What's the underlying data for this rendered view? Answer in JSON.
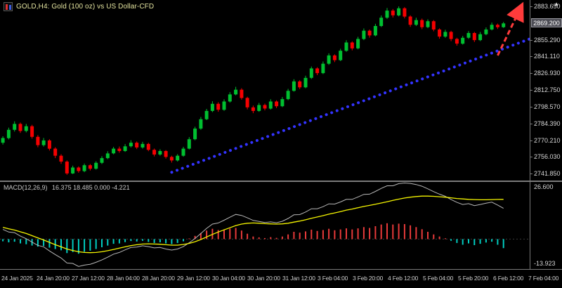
{
  "header": {
    "title": "GOLD,H4: Gold (100 oz) vs US Dollar-CFD",
    "shift_marker": "▲"
  },
  "colors": {
    "background": "#000000",
    "candle_up": "#00bf30",
    "candle_down": "#f50000",
    "trend_line": "#3333ff",
    "arrow": "#ff3b3b",
    "signal_line": "#f5f500",
    "macd_line": "#b8b8b8",
    "hist_up": "#e83a3a",
    "hist_down": "#00ccc0",
    "bid_box_bg": "#4d4d55",
    "axis_text": "#d9d9d9",
    "separator": "#7a7a7a"
  },
  "chart_data": {
    "type": "candlestick",
    "symbol": "GOLD",
    "timeframe": "H4",
    "main": {
      "price_max": 2889,
      "price_min": 2736,
      "slots": 91,
      "bid_price": "2869.200",
      "price_axis": [
        "2883.650",
        "2855.290",
        "2841.110",
        "2826.930",
        "2812.750",
        "2798.570",
        "2784.390",
        "2770.210",
        "2756.030",
        "2741.850"
      ],
      "candles": [
        [
          2768,
          2773.5,
          2766.5,
          2772
        ],
        [
          2772,
          2780.8,
          2770.9,
          2779
        ],
        [
          2779,
          2786.2,
          2777.5,
          2784
        ],
        [
          2784,
          2785.1,
          2776.3,
          2778
        ],
        [
          2778,
          2784.0,
          2776.8,
          2782
        ],
        [
          2782,
          2783.2,
          2771.5,
          2773
        ],
        [
          2773,
          2774.5,
          2764.2,
          2766
        ],
        [
          2766,
          2772.1,
          2764.8,
          2770
        ],
        [
          2770,
          2771.0,
          2761.4,
          2763
        ],
        [
          2763,
          2764.2,
          2755.0,
          2757
        ],
        [
          2757,
          2758.3,
          2750.1,
          2752
        ],
        [
          2752,
          2753.0,
          2740.8,
          2742
        ],
        [
          2742,
          2748.6,
          2741.5,
          2747
        ],
        [
          2747,
          2748.0,
          2742.6,
          2744
        ],
        [
          2744,
          2750.4,
          2743.1,
          2749
        ],
        [
          2749,
          2750.0,
          2744.5,
          2746
        ],
        [
          2746,
          2752.3,
          2745.2,
          2751
        ],
        [
          2751,
          2756.6,
          2750.0,
          2755
        ],
        [
          2755,
          2760.8,
          2754.1,
          2759
        ],
        [
          2759,
          2764.5,
          2758.2,
          2763
        ],
        [
          2763,
          2764.8,
          2759.6,
          2761
        ],
        [
          2761,
          2766.9,
          2760.3,
          2765
        ],
        [
          2765,
          2770.2,
          2764.0,
          2768
        ],
        [
          2768,
          2769.1,
          2762.7,
          2764
        ],
        [
          2764,
          2768.8,
          2763.0,
          2767
        ],
        [
          2767,
          2768.0,
          2760.9,
          2762
        ],
        [
          2762,
          2763.1,
          2756.4,
          2758
        ],
        [
          2758,
          2762.5,
          2757.0,
          2761
        ],
        [
          2761,
          2761.8,
          2754.6,
          2756
        ],
        [
          2756,
          2757.0,
          2751.2,
          2753
        ],
        [
          2753,
          2758.4,
          2752.1,
          2757
        ],
        [
          2757,
          2764.6,
          2756.2,
          2763
        ],
        [
          2763,
          2772.8,
          2762.4,
          2771
        ],
        [
          2771,
          2781.6,
          2770.1,
          2780
        ],
        [
          2780,
          2789.9,
          2779.0,
          2788
        ],
        [
          2788,
          2796.7,
          2787.2,
          2795
        ],
        [
          2795,
          2803.2,
          2794.0,
          2801
        ],
        [
          2801,
          2802.4,
          2794.3,
          2796
        ],
        [
          2796,
          2804.8,
          2795.1,
          2803
        ],
        [
          2803,
          2810.9,
          2802.0,
          2809
        ],
        [
          2809,
          2815.4,
          2808.2,
          2813
        ],
        [
          2813,
          2814.2,
          2804.5,
          2806
        ],
        [
          2806,
          2807.0,
          2796.3,
          2798
        ],
        [
          2798,
          2799.5,
          2793.1,
          2795
        ],
        [
          2795,
          2801.8,
          2794.2,
          2800
        ],
        [
          2800,
          2801.2,
          2795.5,
          2797
        ],
        [
          2797,
          2804.9,
          2796.1,
          2803
        ],
        [
          2803,
          2804.0,
          2797.4,
          2799
        ],
        [
          2799,
          2806.8,
          2798.2,
          2805
        ],
        [
          2805,
          2813.7,
          2804.1,
          2812
        ],
        [
          2812,
          2821.9,
          2811.3,
          2820
        ],
        [
          2820,
          2821.0,
          2813.5,
          2815
        ],
        [
          2815,
          2824.8,
          2814.2,
          2823
        ],
        [
          2823,
          2832.6,
          2822.1,
          2831
        ],
        [
          2831,
          2832.0,
          2825.3,
          2827
        ],
        [
          2827,
          2836.9,
          2826.2,
          2835
        ],
        [
          2835,
          2843.8,
          2834.0,
          2842
        ],
        [
          2842,
          2843.0,
          2836.4,
          2838
        ],
        [
          2838,
          2847.7,
          2837.2,
          2846
        ],
        [
          2846,
          2854.9,
          2845.1,
          2853
        ],
        [
          2853,
          2854.0,
          2846.3,
          2848
        ],
        [
          2848,
          2857.8,
          2847.2,
          2856
        ],
        [
          2856,
          2864.9,
          2855.0,
          2863
        ],
        [
          2863,
          2864.0,
          2857.1,
          2859
        ],
        [
          2859,
          2868.8,
          2858.2,
          2867
        ],
        [
          2867,
          2875.9,
          2866.1,
          2874
        ],
        [
          2874,
          2882.2,
          2873.0,
          2880
        ],
        [
          2880,
          2881.4,
          2874.2,
          2876
        ],
        [
          2876,
          2883.6,
          2875.1,
          2882
        ],
        [
          2882,
          2883.0,
          2873.4,
          2875
        ],
        [
          2875,
          2876.1,
          2866.2,
          2868
        ],
        [
          2868,
          2874.0,
          2867.0,
          2872
        ],
        [
          2872,
          2873.2,
          2864.3,
          2866
        ],
        [
          2866,
          2872.6,
          2865.1,
          2871
        ],
        [
          2871,
          2872.0,
          2862.5,
          2864
        ],
        [
          2864,
          2865.0,
          2856.2,
          2858
        ],
        [
          2858,
          2863.8,
          2857.0,
          2862
        ],
        [
          2862,
          2862.9,
          2854.1,
          2856
        ],
        [
          2856,
          2857.0,
          2850.3,
          2852
        ],
        [
          2852,
          2858.6,
          2851.2,
          2857
        ],
        [
          2857,
          2862.7,
          2856.0,
          2861
        ],
        [
          2861,
          2862.0,
          2853.4,
          2855
        ],
        [
          2855,
          2861.9,
          2854.2,
          2860
        ],
        [
          2860,
          2865.8,
          2859.1,
          2864
        ],
        [
          2864,
          2869.9,
          2863.2,
          2868
        ],
        [
          2868,
          2869.0,
          2864.5,
          2866
        ],
        [
          2866,
          2870.4,
          2865.3,
          2869.2
        ]
      ],
      "trend_line": {
        "from_slot": 29,
        "from_price": 2743,
        "to_slot": 90.5,
        "to_price": 2856
      },
      "arrow": {
        "from_slot": 85,
        "from_price": 2842,
        "to_slot": 88.8,
        "to_price": 2881
      }
    },
    "macd": {
      "label": "MACD(12,26,9)",
      "values_text": "16.375 18.485 0.000 -4.221",
      "max": 26.6,
      "min": -13.923,
      "axis": [
        "26.600",
        "-13.923"
      ],
      "signal": [
        5.5,
        4.8,
        4.2,
        3.4,
        2.6,
        1.6,
        0.6,
        -0.4,
        -1.5,
        -2.6,
        -3.6,
        -4.6,
        -5.3,
        -5.9,
        -6.2,
        -6.3,
        -6.2,
        -5.9,
        -5.4,
        -4.8,
        -4.2,
        -3.6,
        -3.0,
        -2.6,
        -2.3,
        -2.2,
        -2.3,
        -2.4,
        -2.6,
        -2.8,
        -2.8,
        -2.5,
        -2.0,
        -1.2,
        -0.2,
        1.0,
        2.2,
        3.3,
        4.3,
        5.3,
        6.3,
        7.0,
        7.4,
        7.5,
        7.4,
        7.2,
        7.1,
        7.0,
        7.1,
        7.4,
        7.9,
        8.4,
        9.0,
        9.7,
        10.3,
        10.9,
        11.6,
        12.2,
        12.8,
        13.5,
        14.0,
        14.6,
        15.2,
        15.7,
        16.2,
        16.8,
        17.4,
        18.0,
        18.6,
        19.1,
        19.5,
        19.8,
        20.0,
        20.0,
        19.9,
        19.7,
        19.5,
        19.2,
        18.9,
        18.7,
        18.5,
        18.4,
        18.3,
        18.3,
        18.4,
        18.45,
        18.5
      ],
      "histogram": [
        -1.0,
        -1.5,
        -1.2,
        -2.0,
        -2.4,
        -3.0,
        -3.5,
        -3.2,
        -4.0,
        -4.6,
        -5.2,
        -6.5,
        -6.0,
        -6.8,
        -5.9,
        -5.4,
        -4.6,
        -3.8,
        -3.0,
        -2.2,
        -2.0,
        -1.4,
        -0.9,
        -1.1,
        -0.8,
        -1.3,
        -1.8,
        -1.5,
        -2.0,
        -2.3,
        -1.8,
        -1.0,
        0.3,
        1.5,
        2.8,
        4.0,
        4.8,
        4.2,
        4.5,
        4.9,
        5.2,
        4.0,
        2.5,
        1.2,
        0.8,
        0.5,
        0.9,
        0.6,
        1.2,
        2.2,
        3.4,
        3.0,
        3.6,
        4.4,
        3.8,
        4.2,
        4.8,
        4.1,
        4.5,
        5.0,
        4.5,
        5.0,
        5.6,
        5.2,
        6.0,
        6.8,
        7.4,
        6.8,
        7.2,
        7.0,
        6.4,
        5.6,
        4.6,
        3.4,
        2.2,
        1.2,
        0.4,
        -0.8,
        -1.8,
        -2.6,
        -2.0,
        -2.8,
        -2.2,
        -1.6,
        -1.2,
        -2.6,
        -4.2
      ]
    },
    "time_axis": [
      "24 Jan 2025",
      "24 Jan 20:00",
      "27 Jan 12:00",
      "28 Jan 04:00",
      "28 Jan 20:00",
      "29 Jan 12:00",
      "30 Jan 04:00",
      "30 Jan 20:00",
      "31 Jan 12:00",
      "3 Feb 04:00",
      "3 Feb 20:00",
      "4 Feb 12:00",
      "5 Feb 04:00",
      "5 Feb 20:00",
      "6 Feb 12:00",
      "7 Feb 04:00"
    ]
  }
}
